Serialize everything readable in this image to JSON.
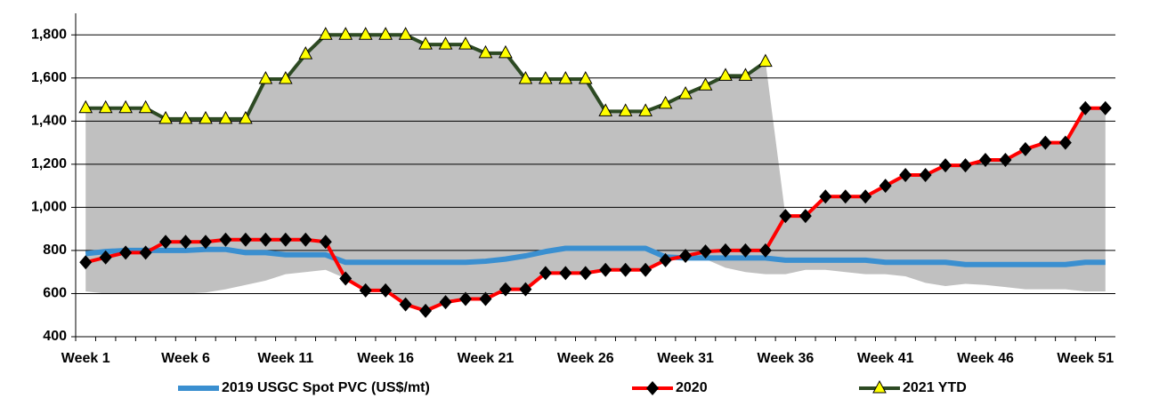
{
  "chart_data": {
    "type": "line",
    "categories": [
      "Week 1",
      null,
      null,
      null,
      null,
      "Week 6",
      null,
      null,
      null,
      null,
      "Week 11",
      null,
      null,
      null,
      null,
      "Week 16",
      null,
      null,
      null,
      null,
      "Week 21",
      null,
      null,
      null,
      null,
      "Week 26",
      null,
      null,
      null,
      null,
      "Week 31",
      null,
      null,
      null,
      null,
      "Week 36",
      null,
      null,
      null,
      null,
      "Week 41",
      null,
      null,
      null,
      null,
      "Week 46",
      null,
      null,
      null,
      null,
      "Week 51",
      null
    ],
    "ylim": [
      400,
      1900
    ],
    "yticks": [
      400,
      600,
      800,
      {
        "value": 1000,
        "label": "1,000"
      },
      {
        "value": 1200,
        "label": "1,200"
      },
      {
        "value": 1400,
        "label": "1,400"
      },
      {
        "value": 1600,
        "label": "1,600"
      },
      {
        "value": 1800,
        "label": "1,800"
      }
    ],
    "grid": true,
    "legend": "bottom",
    "band": {
      "color": "#c0c0c0",
      "upper": [
        1460,
        1460,
        1460,
        1460,
        1410,
        1410,
        1410,
        1410,
        1410,
        1595,
        1595,
        1710,
        1800,
        1800,
        1800,
        1800,
        1800,
        1755,
        1755,
        1755,
        1715,
        1715,
        1595,
        1595,
        1595,
        1595,
        1445,
        1445,
        1445,
        1480,
        1525,
        1565,
        1610,
        1610,
        1675,
        960,
        960,
        1050,
        1050,
        1050,
        1100,
        1150,
        1150,
        1195,
        1195,
        1220,
        1220,
        1270,
        1300,
        1300,
        1460,
        1460
      ],
      "lower": [
        610,
        600,
        600,
        600,
        600,
        600,
        605,
        620,
        640,
        660,
        690,
        700,
        710,
        670,
        615,
        615,
        550,
        520,
        560,
        575,
        575,
        620,
        620,
        695,
        695,
        695,
        710,
        710,
        710,
        755,
        770,
        760,
        720,
        700,
        690,
        690,
        710,
        710,
        700,
        690,
        690,
        680,
        650,
        635,
        645,
        640,
        630,
        620,
        620,
        620,
        610,
        610
      ]
    },
    "series": [
      {
        "name": "2019 USGC Spot PVC (US$/mt)",
        "color": "#3a8fd0",
        "marker": "none",
        "values": [
          785,
          795,
          800,
          800,
          800,
          800,
          805,
          805,
          790,
          790,
          780,
          780,
          780,
          745,
          745,
          745,
          745,
          745,
          745,
          745,
          750,
          760,
          775,
          795,
          810,
          810,
          810,
          810,
          810,
          770,
          765,
          765,
          765,
          765,
          765,
          755,
          755,
          755,
          755,
          755,
          745,
          745,
          745,
          745,
          735,
          735,
          735,
          735,
          735,
          735,
          745,
          745
        ]
      },
      {
        "name": "2020",
        "color": "#ff0000",
        "marker": "diamond",
        "values": [
          745,
          768,
          790,
          790,
          840,
          840,
          840,
          850,
          850,
          850,
          850,
          850,
          840,
          670,
          615,
          615,
          550,
          520,
          560,
          575,
          575,
          620,
          620,
          695,
          695,
          695,
          710,
          710,
          710,
          755,
          775,
          795,
          800,
          800,
          800,
          960,
          960,
          1050,
          1050,
          1050,
          1100,
          1150,
          1150,
          1195,
          1195,
          1220,
          1220,
          1270,
          1300,
          1300,
          1460,
          1460
        ]
      },
      {
        "name": "2021 YTD",
        "color": "#2d4a23",
        "marker": "triangle",
        "values": [
          1460,
          1460,
          1460,
          1460,
          1410,
          1410,
          1410,
          1410,
          1410,
          1595,
          1595,
          1710,
          1800,
          1800,
          1800,
          1800,
          1800,
          1755,
          1755,
          1755,
          1715,
          1715,
          1595,
          1595,
          1595,
          1595,
          1445,
          1445,
          1445,
          1480,
          1525,
          1565,
          1610,
          1610,
          1675,
          null,
          null,
          null,
          null,
          null,
          null,
          null,
          null,
          null,
          null,
          null,
          null,
          null,
          null,
          null,
          null,
          null
        ]
      }
    ]
  }
}
